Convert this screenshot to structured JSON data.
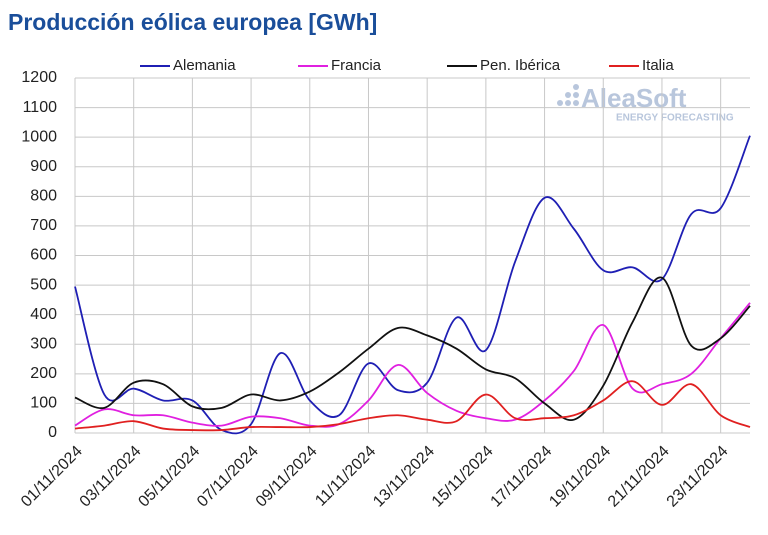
{
  "chart_data": {
    "type": "line",
    "title": "Producción eólica europea [GWh]",
    "watermark": {
      "brand": "AleaSoft",
      "tagline": "ENERGY FORECASTING"
    },
    "categories": [
      "01/11/2024",
      null,
      "03/11/2024",
      null,
      "05/11/2024",
      null,
      "07/11/2024",
      null,
      "09/11/2024",
      null,
      "11/11/2024",
      null,
      "13/11/2024",
      null,
      "15/11/2024",
      null,
      "17/11/2024",
      null,
      "19/11/2024",
      null,
      "21/11/2024",
      null,
      "23/11/2024",
      null
    ],
    "series": [
      {
        "name": "Alemania",
        "color": "#1f1fb4",
        "values": [
          495,
          130,
          150,
          110,
          110,
          10,
          30,
          270,
          110,
          60,
          235,
          145,
          170,
          390,
          280,
          580,
          795,
          690,
          550,
          560,
          520,
          740,
          760,
          1005
        ]
      },
      {
        "name": "Francia",
        "color": "#e020e0",
        "values": [
          25,
          80,
          60,
          60,
          35,
          25,
          55,
          50,
          25,
          30,
          110,
          230,
          135,
          75,
          50,
          45,
          110,
          210,
          365,
          150,
          165,
          200,
          320,
          440
        ]
      },
      {
        "name": "Pen. Ibérica",
        "color": "#111111",
        "values": [
          120,
          85,
          170,
          165,
          90,
          85,
          130,
          110,
          140,
          205,
          285,
          355,
          330,
          285,
          215,
          185,
          100,
          45,
          160,
          375,
          525,
          295,
          320,
          430
        ]
      },
      {
        "name": "Italia",
        "color": "#e02020",
        "values": [
          15,
          25,
          40,
          15,
          10,
          10,
          20,
          20,
          20,
          30,
          50,
          60,
          45,
          40,
          130,
          50,
          50,
          60,
          110,
          175,
          95,
          165,
          60,
          20
        ]
      }
    ],
    "ylim": [
      0,
      1200
    ],
    "yticks": [
      0,
      100,
      200,
      300,
      400,
      500,
      600,
      700,
      800,
      900,
      1000,
      1100,
      1200
    ],
    "grid": true,
    "legend": "top"
  }
}
